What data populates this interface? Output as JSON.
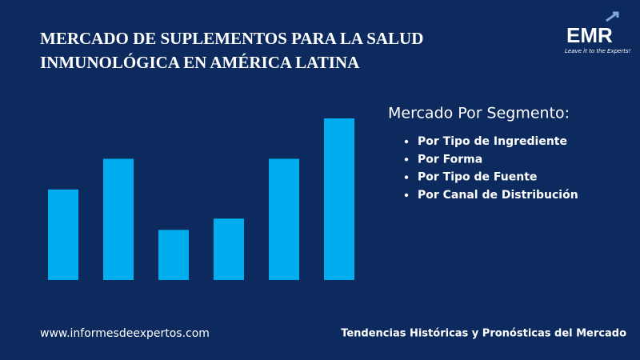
{
  "header": {
    "title": [
      "MERCADO DE SUPLEMENTOS PARA LA SALUD",
      "INMUNOLÓGICA EN AMÉRICA LATINA"
    ]
  },
  "logo": {
    "name": "EMR",
    "tagline": "Leave it to the Experts!"
  },
  "chart_data": {
    "type": "bar",
    "categories": [
      null,
      null,
      null,
      null,
      null,
      null
    ],
    "values": [
      56,
      75,
      31,
      38,
      75,
      100
    ],
    "ylim": [
      0,
      100
    ],
    "color": "#00aeef"
  },
  "segments": {
    "heading": "Mercado Por Segmento:",
    "items": [
      "Por Tipo de Ingrediente",
      "Por Forma",
      "Por Tipo de Fuente",
      "Por Canal de Distribución"
    ]
  },
  "footer": {
    "website": "www.informesdeexpertos.com",
    "tagline": "Tendencias Históricas y Pronósticas del Mercado"
  }
}
